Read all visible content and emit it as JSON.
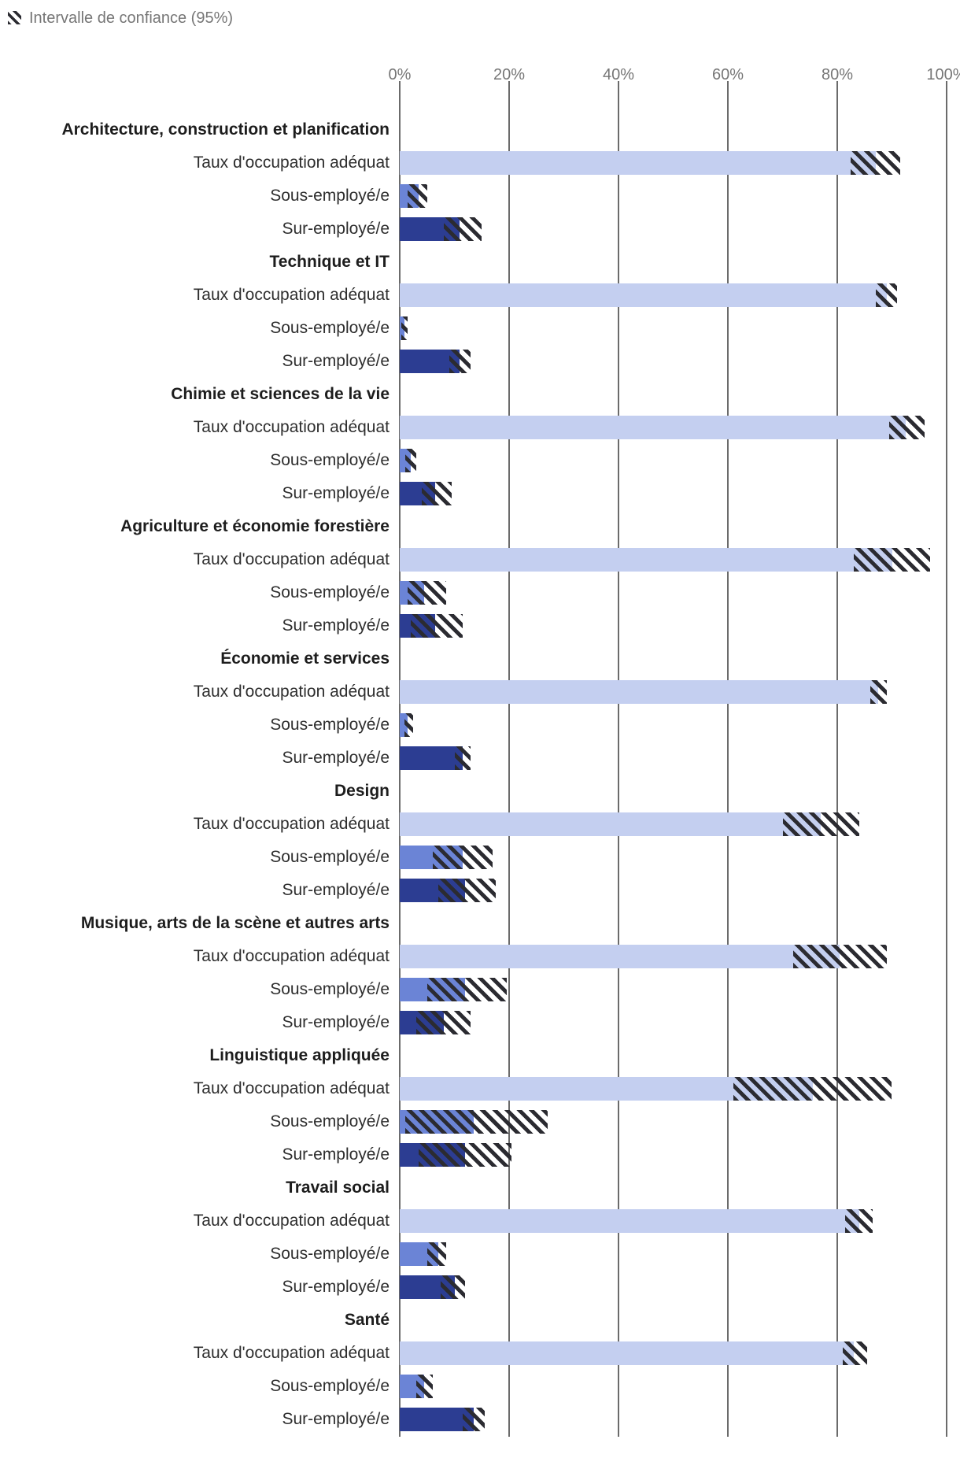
{
  "legend": {
    "label": "Intervalle de confiance (95%)"
  },
  "x_axis": {
    "ticks": [
      "0%",
      "20%",
      "40%",
      "60%",
      "80%",
      "100%"
    ],
    "min": 0,
    "max": 100
  },
  "chart_data": {
    "type": "bar",
    "orientation": "horizontal",
    "unit": "percent",
    "legend_note": "Hatched area = 95% confidence interval",
    "colors": {
      "adequate": "#c4cff0",
      "under": "#6b84d6",
      "over": "#2c3d92",
      "ci_hatch": "#2b2b31",
      "gridline": "#6b6b6b",
      "axis_text": "#767676",
      "label_text": "#2e2e2e"
    },
    "series_names": {
      "adequate": "Taux d'occupation adéquat",
      "under": "Sous-employé/e",
      "over": "Sur-employé/e"
    },
    "groups": [
      {
        "name": "Architecture, construction et planification",
        "bars": [
          {
            "label": "Taux d'occupation adéquat",
            "series": "adequate",
            "value": 87,
            "ci_low": 82.5,
            "ci_high": 91.5
          },
          {
            "label": "Sous-employé/e",
            "series": "under",
            "value": 3.5,
            "ci_low": 1.5,
            "ci_high": 5
          },
          {
            "label": "Sur-employé/e",
            "series": "over",
            "value": 11,
            "ci_low": 8,
            "ci_high": 15
          }
        ]
      },
      {
        "name": "Technique et IT",
        "bars": [
          {
            "label": "Taux d'occupation adéquat",
            "series": "adequate",
            "value": 89,
            "ci_low": 87,
            "ci_high": 91
          },
          {
            "label": "Sous-employé/e",
            "series": "under",
            "value": 0.8,
            "ci_low": 0.3,
            "ci_high": 1.5
          },
          {
            "label": "Sur-employé/e",
            "series": "over",
            "value": 11,
            "ci_low": 9,
            "ci_high": 13
          }
        ]
      },
      {
        "name": "Chimie et sciences de la vie",
        "bars": [
          {
            "label": "Taux d'occupation adéquat",
            "series": "adequate",
            "value": 92.5,
            "ci_low": 89.5,
            "ci_high": 96
          },
          {
            "label": "Sous-employé/e",
            "series": "under",
            "value": 2,
            "ci_low": 1,
            "ci_high": 3
          },
          {
            "label": "Sur-employé/e",
            "series": "over",
            "value": 6.5,
            "ci_low": 4,
            "ci_high": 9.5
          }
        ]
      },
      {
        "name": "Agriculture et économie forestière",
        "bars": [
          {
            "label": "Taux d'occupation adéquat",
            "series": "adequate",
            "value": 90,
            "ci_low": 83,
            "ci_high": 97
          },
          {
            "label": "Sous-employé/e",
            "series": "under",
            "value": 4.5,
            "ci_low": 1.5,
            "ci_high": 8.5
          },
          {
            "label": "Sur-employé/e",
            "series": "over",
            "value": 6.5,
            "ci_low": 2,
            "ci_high": 11.5
          }
        ]
      },
      {
        "name": "Économie et services",
        "bars": [
          {
            "label": "Taux d'occupation adéquat",
            "series": "adequate",
            "value": 87.5,
            "ci_low": 86,
            "ci_high": 89
          },
          {
            "label": "Sous-employé/e",
            "series": "under",
            "value": 1.5,
            "ci_low": 0.8,
            "ci_high": 2.5
          },
          {
            "label": "Sur-employé/e",
            "series": "over",
            "value": 11.5,
            "ci_low": 10,
            "ci_high": 13
          }
        ]
      },
      {
        "name": "Design",
        "bars": [
          {
            "label": "Taux d'occupation adéquat",
            "series": "adequate",
            "value": 77,
            "ci_low": 70,
            "ci_high": 84
          },
          {
            "label": "Sous-employé/e",
            "series": "under",
            "value": 11.5,
            "ci_low": 6,
            "ci_high": 17
          },
          {
            "label": "Sur-employé/e",
            "series": "over",
            "value": 12,
            "ci_low": 7,
            "ci_high": 17.5
          }
        ]
      },
      {
        "name": "Musique, arts de la scène et autres arts",
        "bars": [
          {
            "label": "Taux d'occupation adéquat",
            "series": "adequate",
            "value": 80.5,
            "ci_low": 72,
            "ci_high": 89
          },
          {
            "label": "Sous-employé/e",
            "series": "under",
            "value": 12,
            "ci_low": 5,
            "ci_high": 19.5
          },
          {
            "label": "Sur-employé/e",
            "series": "over",
            "value": 8,
            "ci_low": 3,
            "ci_high": 13
          }
        ]
      },
      {
        "name": "Linguistique appliquée",
        "bars": [
          {
            "label": "Taux d'occupation adéquat",
            "series": "adequate",
            "value": 75.5,
            "ci_low": 61,
            "ci_high": 90
          },
          {
            "label": "Sous-employé/e",
            "series": "under",
            "value": 13.5,
            "ci_low": 1,
            "ci_high": 27
          },
          {
            "label": "Sur-employé/e",
            "series": "over",
            "value": 12,
            "ci_low": 3.5,
            "ci_high": 20.5
          }
        ]
      },
      {
        "name": "Travail social",
        "bars": [
          {
            "label": "Taux d'occupation adéquat",
            "series": "adequate",
            "value": 84,
            "ci_low": 81.5,
            "ci_high": 86.5
          },
          {
            "label": "Sous-employé/e",
            "series": "under",
            "value": 7,
            "ci_low": 5,
            "ci_high": 8.5
          },
          {
            "label": "Sur-employé/e",
            "series": "over",
            "value": 10,
            "ci_low": 7.5,
            "ci_high": 12
          }
        ]
      },
      {
        "name": "Santé",
        "bars": [
          {
            "label": "Taux d'occupation adéquat",
            "series": "adequate",
            "value": 83,
            "ci_low": 81,
            "ci_high": 85.5
          },
          {
            "label": "Sous-employé/e",
            "series": "under",
            "value": 4.5,
            "ci_low": 3,
            "ci_high": 6
          },
          {
            "label": "Sur-employé/e",
            "series": "over",
            "value": 13.5,
            "ci_low": 11.5,
            "ci_high": 15.5
          }
        ]
      }
    ]
  }
}
